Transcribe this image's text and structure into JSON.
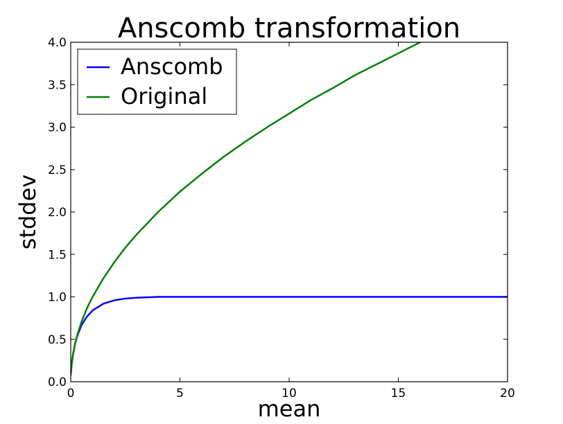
{
  "chart_data": {
    "type": "line",
    "title": "Anscomb transformation",
    "xlabel": "mean",
    "ylabel": "stddev",
    "xlim": [
      0,
      20
    ],
    "ylim": [
      0,
      4.0
    ],
    "x_ticks": [
      0,
      5,
      10,
      15,
      20
    ],
    "x_tick_labels": [
      "0",
      "5",
      "10",
      "15",
      "20"
    ],
    "y_ticks": [
      0.0,
      0.5,
      1.0,
      1.5,
      2.0,
      2.5,
      3.0,
      3.5,
      4.0
    ],
    "y_tick_labels": [
      "0.0",
      "0.5",
      "1.0",
      "1.5",
      "2.0",
      "2.5",
      "3.0",
      "3.5",
      "4.0"
    ],
    "grid": false,
    "legend": "top-left",
    "x": [
      0,
      0.05,
      0.1,
      0.2,
      0.3,
      0.5,
      0.75,
      1,
      1.5,
      2,
      2.5,
      3,
      4,
      5,
      6,
      7,
      8,
      9,
      10,
      11,
      12,
      13,
      14,
      15,
      16,
      16.3,
      17,
      18,
      19,
      20
    ],
    "series": [
      {
        "name": "Anscomb",
        "color": "#0000ff",
        "values": [
          0.08,
          0.22,
          0.31,
          0.45,
          0.54,
          0.67,
          0.77,
          0.84,
          0.92,
          0.96,
          0.98,
          0.99,
          1.0,
          1.0,
          1.0,
          1.0,
          1.0,
          1.0,
          1.0,
          1.0,
          1.0,
          1.0,
          1.0,
          1.0,
          1.0,
          1.0,
          1.0,
          1.0,
          1.0,
          1.0
        ]
      },
      {
        "name": "Original",
        "color": "#008000",
        "values": [
          0.08,
          0.22,
          0.32,
          0.45,
          0.55,
          0.71,
          0.87,
          1.0,
          1.22,
          1.41,
          1.58,
          1.73,
          2.0,
          2.24,
          2.45,
          2.65,
          2.83,
          3.0,
          3.16,
          3.32,
          3.46,
          3.61,
          3.74,
          3.87,
          4.0,
          4.04,
          null,
          null,
          null,
          null
        ]
      }
    ]
  }
}
